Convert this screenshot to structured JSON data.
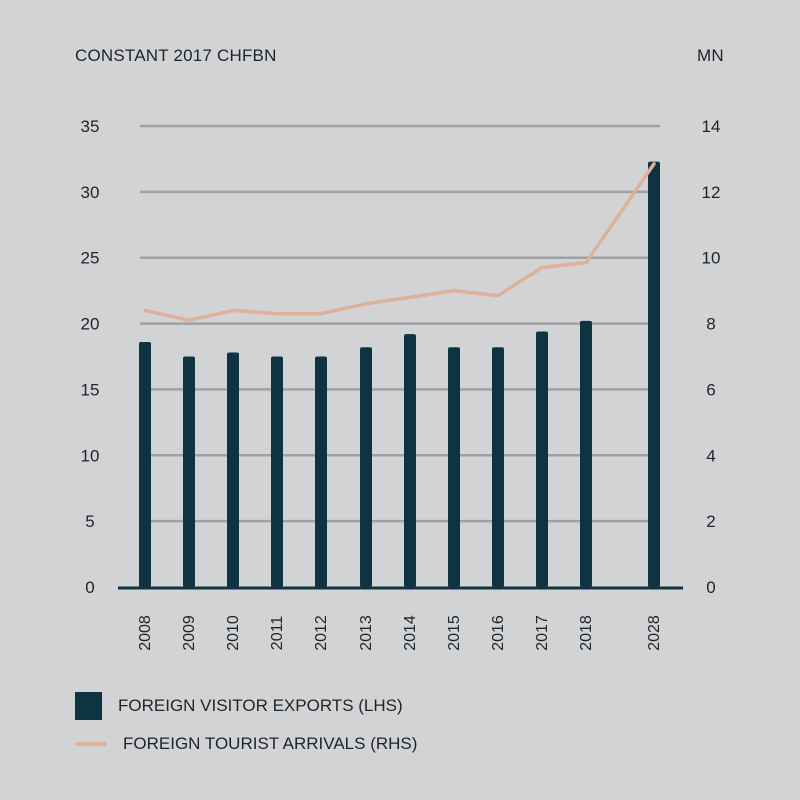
{
  "chart_data": {
    "type": "bar",
    "categories": [
      "2008",
      "2009",
      "2010",
      "2011",
      "2012",
      "2013",
      "2014",
      "2015",
      "2016",
      "2017",
      "2018",
      "2028"
    ],
    "series": [
      {
        "name": "FOREIGN VISITOR EXPORTS (LHS)",
        "type": "bar",
        "axis": "left",
        "color": "#0f3441",
        "values": [
          18.6,
          17.5,
          17.8,
          17.5,
          17.5,
          18.2,
          19.2,
          18.2,
          18.2,
          19.4,
          20.2,
          32.3
        ]
      },
      {
        "name": "FOREIGN TOURIST ARRIVALS (RHS)",
        "type": "line",
        "axis": "right",
        "color": "#dfb09a",
        "values": [
          8.4,
          8.1,
          8.4,
          8.3,
          8.3,
          8.6,
          8.8,
          9.0,
          8.85,
          9.7,
          9.85,
          12.85
        ]
      }
    ],
    "ylabel_left": "CONSTANT 2017 CHFBN",
    "ylabel_right": "MN",
    "ylim_left": [
      0,
      35
    ],
    "ylim_right": [
      0,
      14
    ],
    "yticks_left": [
      "0",
      "5",
      "10",
      "15",
      "20",
      "25",
      "30",
      "35"
    ],
    "yticks_right": [
      "0",
      "2",
      "4",
      "6",
      "8",
      "10",
      "12",
      "14"
    ],
    "grid": true,
    "gridColor": "#9fa1a4",
    "legend_position": "bottom-left"
  }
}
